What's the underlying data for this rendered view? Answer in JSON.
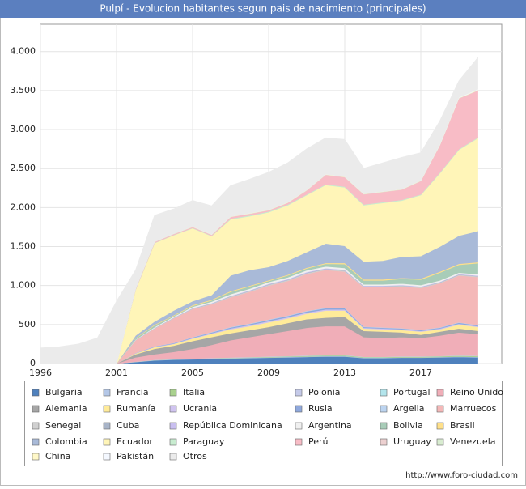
{
  "chart_data": {
    "type": "stacked-area",
    "title": "Pulpí - Evolucion habitantes segun pais de nacimiento (principales)",
    "source": "http://www.foro-ciudad.com",
    "categories": [
      "1996",
      null,
      null,
      null,
      "2001",
      null,
      null,
      null,
      "2005",
      null,
      null,
      null,
      "2009",
      null,
      null,
      null,
      "2013",
      null,
      null,
      null,
      "2017",
      null,
      null,
      null
    ],
    "ylim": [
      0,
      4350
    ],
    "yticks": [
      0,
      500,
      {
        "value": 1000,
        "label": "1.000"
      },
      {
        "value": 1500,
        "label": "1.500"
      },
      {
        "value": 2000,
        "label": "2.000"
      },
      {
        "value": 2500,
        "label": "2.500"
      },
      {
        "value": 3000,
        "label": "3.000"
      },
      {
        "value": 3500,
        "label": "3.500"
      },
      {
        "value": 4000,
        "label": "4.000"
      }
    ],
    "grid": true,
    "series": [
      {
        "name": "Bulgaria",
        "color": "#4f81bd",
        "values": [
          0,
          0,
          0,
          0,
          0,
          20,
          40,
          50,
          55,
          60,
          65,
          70,
          75,
          80,
          85,
          90,
          90,
          70,
          70,
          75,
          75,
          80,
          85,
          80
        ]
      },
      {
        "name": "Francia",
        "color": "#b4c7e7",
        "values": [
          0,
          0,
          0,
          0,
          0,
          2,
          3,
          3,
          4,
          4,
          5,
          5,
          5,
          6,
          6,
          6,
          6,
          5,
          5,
          5,
          5,
          5,
          6,
          6
        ]
      },
      {
        "name": "Italia",
        "color": "#a9d18e",
        "values": [
          0,
          0,
          0,
          0,
          0,
          1,
          2,
          2,
          3,
          3,
          4,
          5,
          6,
          7,
          8,
          10,
          10,
          8,
          8,
          8,
          8,
          9,
          10,
          10
        ]
      },
      {
        "name": "Polonia",
        "color": "#c5cae9",
        "values": [
          0,
          0,
          0,
          0,
          0,
          1,
          2,
          2,
          2,
          3,
          3,
          3,
          3,
          3,
          3,
          3,
          3,
          2,
          2,
          2,
          2,
          2,
          2,
          2
        ]
      },
      {
        "name": "Portugal",
        "color": "#b3e5ec",
        "values": [
          0,
          0,
          0,
          0,
          0,
          1,
          1,
          1,
          1,
          1,
          1,
          2,
          2,
          2,
          2,
          2,
          2,
          2,
          2,
          2,
          2,
          2,
          2,
          2
        ]
      },
      {
        "name": "Reino Unido",
        "color": "#f0aeb8",
        "values": [
          0,
          0,
          0,
          0,
          0,
          55,
          72,
          92,
          125,
          169,
          222,
          255,
          289,
          322,
          356,
          369,
          369,
          253,
          243,
          248,
          238,
          262,
          295,
          280
        ]
      },
      {
        "name": "Alemania",
        "color": "#a6a6a6",
        "values": [
          0,
          0,
          0,
          0,
          0,
          40,
          70,
          80,
          100,
          100,
          90,
          90,
          90,
          100,
          110,
          110,
          120,
          80,
          80,
          60,
          40,
          50,
          50,
          40
        ]
      },
      {
        "name": "Rumanía",
        "color": "#ffeb99",
        "values": [
          0,
          0,
          0,
          0,
          0,
          10,
          20,
          20,
          30,
          40,
          50,
          50,
          60,
          60,
          70,
          90,
          80,
          30,
          30,
          30,
          40,
          30,
          50,
          50
        ]
      },
      {
        "name": "Ucrania",
        "color": "#d0c4f0",
        "values": [
          0,
          0,
          0,
          0,
          0,
          2,
          5,
          6,
          8,
          10,
          12,
          14,
          15,
          15,
          15,
          15,
          15,
          10,
          10,
          10,
          10,
          10,
          12,
          10
        ]
      },
      {
        "name": "Rusia",
        "color": "#8fa8dc",
        "values": [
          0,
          0,
          0,
          0,
          0,
          2,
          5,
          6,
          8,
          10,
          12,
          14,
          15,
          15,
          15,
          15,
          15,
          10,
          10,
          10,
          10,
          10,
          12,
          10
        ]
      },
      {
        "name": "Argelia",
        "color": "#bcd4f0",
        "values": [
          0,
          0,
          0,
          0,
          0,
          2,
          3,
          3,
          4,
          5,
          6,
          6,
          6,
          6,
          6,
          6,
          6,
          5,
          5,
          5,
          5,
          5,
          5,
          5
        ]
      },
      {
        "name": "Marruecos",
        "color": "#f4b8b8",
        "values": [
          0,
          0,
          0,
          0,
          0,
          164,
          227,
          315,
          360,
          355,
          380,
          406,
          434,
          444,
          474,
          484,
          464,
          505,
          515,
          535,
          535,
          565,
          601,
          615
        ]
      },
      {
        "name": "Senegal",
        "color": "#d0d0d0",
        "values": [
          0,
          0,
          0,
          0,
          0,
          2,
          4,
          5,
          6,
          8,
          10,
          10,
          12,
          12,
          12,
          12,
          12,
          10,
          10,
          10,
          10,
          10,
          10,
          10
        ]
      },
      {
        "name": "Cuba",
        "color": "#a8b4c8",
        "values": [
          0,
          0,
          0,
          0,
          0,
          1,
          2,
          2,
          3,
          3,
          4,
          4,
          4,
          4,
          4,
          4,
          4,
          3,
          3,
          3,
          3,
          3,
          3,
          3
        ]
      },
      {
        "name": "República Dominicana",
        "color": "#c9bff0",
        "values": [
          0,
          0,
          0,
          0,
          0,
          1,
          2,
          3,
          4,
          5,
          6,
          7,
          8,
          8,
          8,
          8,
          8,
          6,
          6,
          6,
          6,
          6,
          6,
          6
        ]
      },
      {
        "name": "Argentina",
        "color": "#f0f0f0",
        "values": [
          0,
          0,
          0,
          0,
          0,
          5,
          10,
          12,
          15,
          18,
          20,
          20,
          22,
          22,
          22,
          22,
          22,
          18,
          18,
          18,
          18,
          18,
          18,
          18
        ]
      },
      {
        "name": "Bolivia",
        "color": "#a8ccb8",
        "values": [
          0,
          0,
          0,
          0,
          0,
          16,
          24,
          10,
          12,
          16,
          30,
          29,
          14,
          24,
          24,
          34,
          50,
          50,
          50,
          60,
          70,
          100,
          100,
          140
        ]
      },
      {
        "name": "Brasil",
        "color": "#ffe08a",
        "values": [
          0,
          0,
          0,
          0,
          0,
          5,
          8,
          8,
          10,
          10,
          10,
          10,
          10,
          10,
          10,
          10,
          14,
          13,
          13,
          13,
          13,
          13,
          13,
          13
        ]
      },
      {
        "name": "Colombia",
        "color": "#a9bad8",
        "values": [
          0,
          0,
          0,
          0,
          0,
          30,
          40,
          60,
          50,
          60,
          200,
          200,
          170,
          180,
          200,
          250,
          220,
          230,
          240,
          270,
          290,
          320,
          360,
          400
        ]
      },
      {
        "name": "Ecuador",
        "color": "#fff5b8",
        "values": [
          0,
          0,
          0,
          0,
          0,
          585,
          1005,
          965,
          935,
          755,
          720,
          690,
          700,
          710,
          730,
          750,
          750,
          720,
          740,
          720,
          780,
          940,
          1100,
          1190
        ]
      },
      {
        "name": "Paraguay",
        "color": "#c8ecd0",
        "values": [
          0,
          0,
          0,
          0,
          0,
          5,
          5,
          5,
          5,
          5,
          10,
          10,
          10,
          10,
          10,
          10,
          10,
          10,
          10,
          10,
          10,
          10,
          10,
          10
        ]
      },
      {
        "name": "Perú",
        "color": "#f8bcc6",
        "values": [
          0,
          0,
          0,
          0,
          0,
          10,
          10,
          10,
          10,
          10,
          20,
          20,
          15,
          20,
          50,
          120,
          120,
          130,
          130,
          130,
          170,
          350,
          650,
          600
        ]
      },
      {
        "name": "Uruguay",
        "color": "#ecd0d0",
        "values": [
          0,
          0,
          0,
          0,
          0,
          2,
          2,
          3,
          3,
          3,
          3,
          3,
          3,
          3,
          3,
          3,
          3,
          3,
          3,
          3,
          3,
          3,
          3,
          3
        ]
      },
      {
        "name": "Venezuela",
        "color": "#d8ecd0",
        "values": [
          0,
          0,
          0,
          0,
          0,
          1,
          2,
          2,
          2,
          2,
          2,
          2,
          2,
          2,
          2,
          2,
          2,
          2,
          2,
          2,
          2,
          2,
          2,
          2
        ]
      },
      {
        "name": "China",
        "color": "#fff8c8",
        "values": [
          0,
          0,
          0,
          0,
          0,
          0,
          1,
          1,
          2,
          2,
          2,
          3,
          3,
          3,
          3,
          3,
          3,
          3,
          3,
          3,
          3,
          3,
          3,
          5
        ]
      },
      {
        "name": "Pakistán",
        "color": "#f4f8ff",
        "values": [
          0,
          0,
          0,
          0,
          0,
          0,
          0,
          0,
          0,
          0,
          0,
          0,
          0,
          0,
          0,
          0,
          0,
          0,
          0,
          0,
          0,
          3,
          5,
          8
        ]
      },
      {
        "name": "Otros",
        "color": "#ebebeb",
        "values": [
          200,
          215,
          250,
          330,
          800,
          235,
          335,
          315,
          335,
          365,
          395,
          435,
          480,
          505,
          525,
          465,
          475,
          325,
          365,
          405,
          355,
          300,
          210,
          405
        ]
      }
    ]
  }
}
